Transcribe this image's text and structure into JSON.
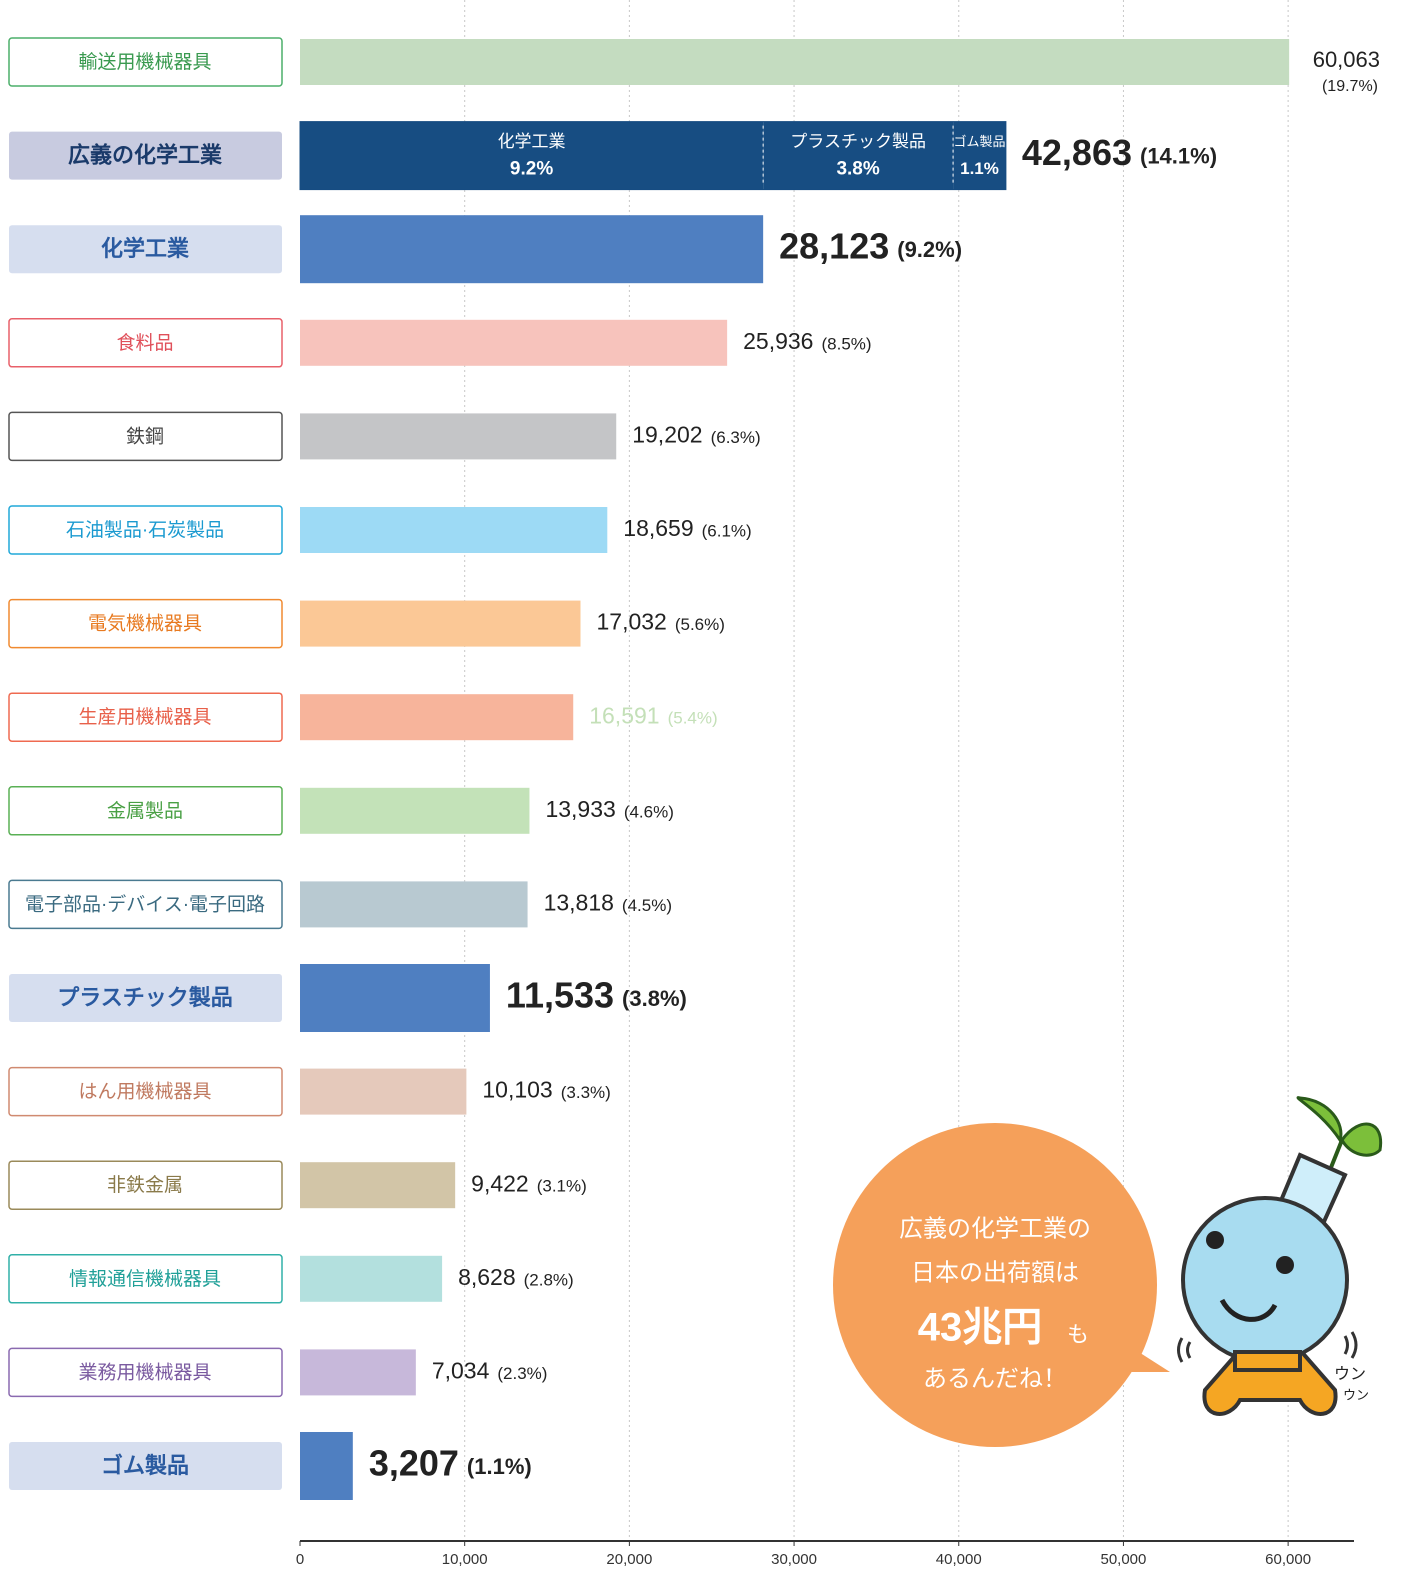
{
  "chart_data": {
    "type": "bar",
    "orientation": "horizontal",
    "categories": [
      "輸送用機械器具",
      "広義の化学工業",
      "化学工業",
      "食料品",
      "鉄鋼",
      "石油製品·石炭製品",
      "電気機械器具",
      "生産用機械器具",
      "金属製品",
      "電子部品·デバイス·電子回路",
      "プラスチック製品",
      "はん用機械器具",
      "非鉄金属",
      "情報通信機械器具",
      "業務用機械器具",
      "ゴム製品"
    ],
    "values": [
      60063,
      42863,
      28123,
      25936,
      19202,
      18659,
      17032,
      16591,
      13933,
      13818,
      11533,
      10103,
      9422,
      8628,
      7034,
      3207
    ],
    "value_labels": [
      "60,063",
      "42,863",
      "28,123",
      "25,936",
      "19,202",
      "18,659",
      "17,032",
      "16,591",
      "13,933",
      "13,818",
      "11,533",
      "10,103",
      "9,422",
      "8,628",
      "7,034",
      "3,207"
    ],
    "share_labels": [
      "(19.7%)",
      "(14.1%)",
      "(9.2%)",
      "(8.5%)",
      "(6.3%)",
      "(6.1%)",
      "(5.6%)",
      "(5.4%)",
      "(4.6%)",
      "(4.5%)",
      "(3.8%)",
      "(3.3%)",
      "(3.1%)",
      "(2.8%)",
      "(2.3%)",
      "(1.1%)"
    ],
    "colors": [
      "#c4dcc0",
      "#174d82",
      "#4f7fc1",
      "#f7c3bc",
      "#c4c5c7",
      "#9ddaf5",
      "#fbc896",
      "#f7b49b",
      "#c3e2b8",
      "#b8c9d1",
      "#4f7fc1",
      "#e5c9bb",
      "#d2c5a7",
      "#b3e0de",
      "#c7b8da",
      "#4f7fc1"
    ],
    "label_colors": [
      "#4caf6a",
      "#c8cbe0",
      "#d6deef",
      "#e8606a",
      "#555555",
      "#20a8d8",
      "#f08a30",
      "#ef6a50",
      "#5ab055",
      "#4a7a90",
      "#d6deef",
      "#d08a70",
      "#9a8a5a",
      "#30b0a8",
      "#8a6ab0",
      "#d6deef"
    ],
    "label_text_colors": [
      "#3a9a50",
      "#1a3a6a",
      "#2a5aa0",
      "#e0505a",
      "#444444",
      "#1b9ad0",
      "#e87a20",
      "#e8604a",
      "#4aa045",
      "#3a6a80",
      "#2a5aa0",
      "#c07a60",
      "#8a7a4a",
      "#20a098",
      "#7a5aa0",
      "#2a5aa0"
    ],
    "value_label_colors": [
      "#222222",
      "#222222",
      "#222222",
      "#222222",
      "#222222",
      "#222222",
      "#222222",
      "#c4e0b8",
      "#222222",
      "#222222",
      "#222222",
      "#222222",
      "#222222",
      "#222222",
      "#222222",
      "#222222"
    ],
    "highlight": [
      false,
      true,
      true,
      false,
      false,
      false,
      false,
      false,
      false,
      false,
      true,
      false,
      false,
      false,
      false,
      true
    ],
    "segments": [
      {
        "name": "化学工業",
        "value": 28123,
        "share_label": "9.2%"
      },
      {
        "name": "プラスチック製品",
        "value": 11533,
        "share_label": "3.8%"
      },
      {
        "name": "ゴム製品",
        "value": 3207,
        "share_label": "1.1%"
      }
    ],
    "xlim": [
      0,
      64000
    ],
    "xticks": [
      0,
      {
        "value": 10000,
        "label": "10,000"
      },
      {
        "value": 20000,
        "label": "20,000"
      },
      {
        "value": 30000,
        "label": "30,000"
      },
      {
        "value": 40000,
        "label": "40,000"
      },
      {
        "value": 50000,
        "label": "50,000"
      },
      {
        "value": 60000,
        "label": "60,000"
      }
    ],
    "grid": true,
    "annotation": {
      "line1": "広義の化学工業の",
      "line2": "日本の出荷額は",
      "emphasis": "43兆円",
      "emphasis_suffix": "も",
      "line4": "あるんだね！"
    },
    "mascot_sounds": [
      "ウン",
      "ウン"
    ]
  }
}
